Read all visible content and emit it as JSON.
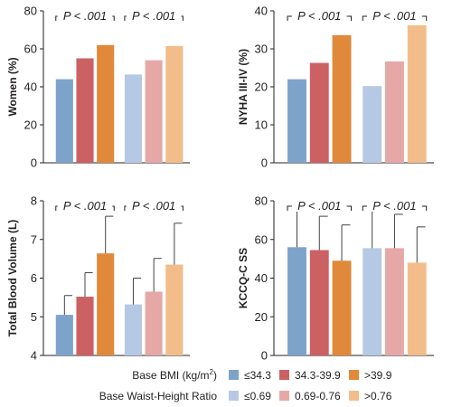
{
  "colors": {
    "bmi": [
      "#7ea3cb",
      "#cc6164",
      "#e0893a"
    ],
    "whr": [
      "#b6c9e4",
      "#e6a8a6",
      "#f2bd8a"
    ],
    "axis": "#231f20",
    "error_bar": "#444444"
  },
  "legend": {
    "rows": [
      {
        "title_main": "Base BMI (kg/m",
        "title_sup": "2",
        "title_end": ")",
        "group": "bmi",
        "labels": [
          "≤34.3",
          "34.3-39.9",
          ">39.9"
        ]
      },
      {
        "title_main": "Base Waist-Height Ratio",
        "title_sup": "",
        "title_end": "",
        "group": "whr",
        "labels": [
          "≤0.69",
          "0.69-0.76",
          ">0.76"
        ]
      }
    ]
  },
  "chart_data": [
    {
      "type": "bar",
      "ylabel": "Women (%)",
      "ylim": [
        0,
        80
      ],
      "yticks": [
        "0",
        "20",
        "40",
        "60",
        "80"
      ],
      "p_values": [
        "P < .001",
        "P < .001"
      ],
      "series": [
        {
          "group": "bmi",
          "categories": [
            "≤34.3",
            "34.3-39.9",
            ">39.9"
          ],
          "values": [
            44,
            55,
            62
          ]
        },
        {
          "group": "whr",
          "categories": [
            "≤0.69",
            "0.69-0.76",
            ">0.76"
          ],
          "values": [
            46.5,
            54,
            61.5
          ]
        }
      ]
    },
    {
      "type": "bar",
      "ylabel": "NYHA III-IV (%)",
      "ylim": [
        0,
        40
      ],
      "yticks": [
        "0",
        "10",
        "20",
        "30",
        "40"
      ],
      "p_values": [
        "P < .001",
        "P < .001"
      ],
      "series": [
        {
          "group": "bmi",
          "categories": [
            "≤34.3",
            "34.3-39.9",
            ">39.9"
          ],
          "values": [
            22,
            26.3,
            33.6
          ]
        },
        {
          "group": "whr",
          "categories": [
            "≤0.69",
            "0.69-0.76",
            ">0.76"
          ],
          "values": [
            20.2,
            26.7,
            36.2
          ]
        }
      ]
    },
    {
      "type": "bar",
      "ylabel": "Total Blood Volume (L)",
      "ylim": [
        4,
        8
      ],
      "yticks": [
        "4",
        "5",
        "6",
        "7",
        "8"
      ],
      "p_values": [
        "P < .001",
        "P < .001"
      ],
      "series": [
        {
          "group": "bmi",
          "categories": [
            "≤34.3",
            "34.3-39.9",
            ">39.9"
          ],
          "values": [
            5.05,
            5.52,
            6.64
          ],
          "errors": [
            0.5,
            0.62,
            0.96
          ]
        },
        {
          "group": "whr",
          "categories": [
            "≤0.69",
            "0.69-0.76",
            ">0.76"
          ],
          "values": [
            5.32,
            5.65,
            6.35
          ],
          "errors": [
            0.68,
            0.86,
            1.07
          ]
        }
      ]
    },
    {
      "type": "bar",
      "ylabel": "KCCQ-C SS",
      "ylim": [
        0,
        80
      ],
      "yticks": [
        "0",
        "20",
        "40",
        "60",
        "80"
      ],
      "p_values": [
        "P < .001",
        "P < .001"
      ],
      "series": [
        {
          "group": "bmi",
          "categories": [
            "≤34.3",
            "34.3-39.9",
            ">39.9"
          ],
          "values": [
            56,
            54.5,
            49
          ],
          "errors": [
            19,
            17.5,
            18.5
          ]
        },
        {
          "group": "whr",
          "categories": [
            "≤0.69",
            "0.69-0.76",
            ">0.76"
          ],
          "values": [
            55.5,
            55.5,
            48
          ],
          "errors": [
            19.5,
            17.5,
            18.5
          ]
        }
      ]
    }
  ]
}
